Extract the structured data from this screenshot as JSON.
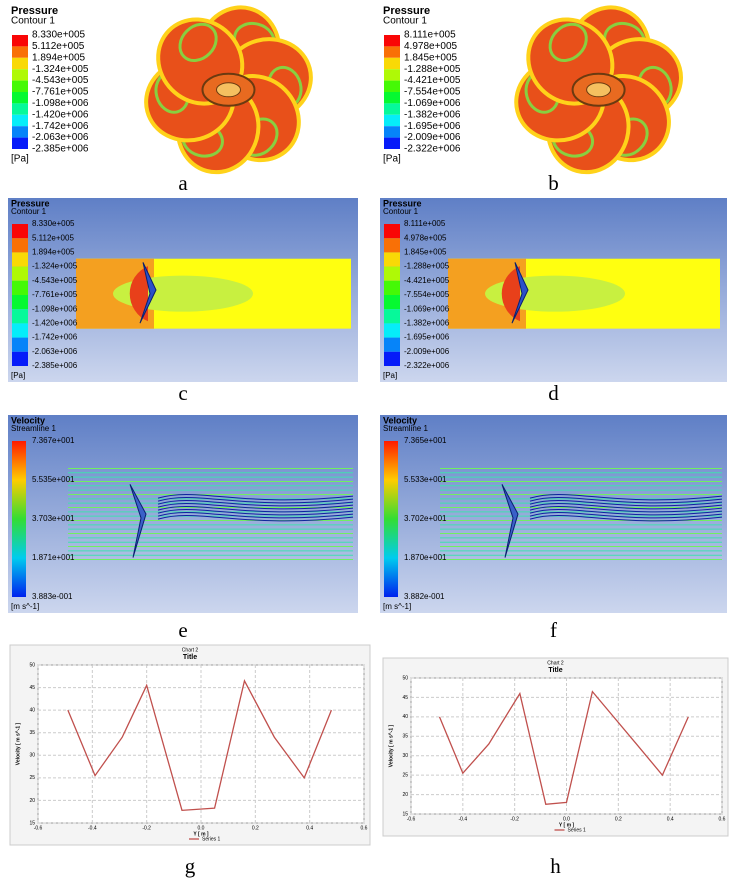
{
  "panels": [
    {
      "label": "a",
      "variable": "Pressure",
      "subtitle": "Contour 1",
      "legend": [
        "8.330e+005",
        "5.112e+005",
        "1.894e+005",
        "-1.324e+005",
        "-4.543e+005",
        "-7.761e+005",
        "-1.098e+006",
        "-1.420e+006",
        "-1.742e+006",
        "-2.063e+006",
        "-2.385e+006"
      ],
      "unit": "[Pa]"
    },
    {
      "label": "b",
      "variable": "Pressure",
      "subtitle": "Contour 1",
      "legend": [
        "8.111e+005",
        "4.978e+005",
        "1.845e+005",
        "-1.288e+005",
        "-4.421e+005",
        "-7.554e+005",
        "-1.069e+006",
        "-1.382e+006",
        "-1.695e+006",
        "-2.009e+006",
        "-2.322e+006"
      ],
      "unit": "[Pa]"
    },
    {
      "label": "c",
      "variable": "Pressure",
      "subtitle": "Contour 1",
      "legend": [
        "8.330e+005",
        "5.112e+005",
        "1.894e+005",
        "-1.324e+005",
        "-4.543e+005",
        "-7.761e+005",
        "-1.098e+006",
        "-1.420e+006",
        "-1.742e+006",
        "-2.063e+006",
        "-2.385e+006"
      ],
      "unit": "[Pa]"
    },
    {
      "label": "d",
      "variable": "Pressure",
      "subtitle": "Contour 1",
      "legend": [
        "8.111e+005",
        "4.978e+005",
        "1.845e+005",
        "-1.288e+005",
        "-4.421e+005",
        "-7.554e+005",
        "-1.069e+006",
        "-1.382e+006",
        "-1.695e+006",
        "-2.009e+006",
        "-2.322e+006"
      ],
      "unit": "[Pa]"
    },
    {
      "label": "e",
      "variable": "Velocity",
      "subtitle": "Streamline 1",
      "legend": [
        "7.367e+001",
        "5.535e+001",
        "3.703e+001",
        "1.871e+001",
        "3.883e-001"
      ],
      "unit": "[m s^-1]"
    },
    {
      "label": "f",
      "variable": "Velocity",
      "subtitle": "Streamline 1",
      "legend": [
        "7.365e+001",
        "5.533e+001",
        "3.702e+001",
        "1.870e+001",
        "3.882e-001"
      ],
      "unit": "[m s^-1]"
    }
  ],
  "chart_data": [
    {
      "type": "line",
      "panel_label": "g",
      "chart_name": "Chart 2",
      "title": "Title",
      "x_label": "Y [ m ]",
      "y_label": "Velocity [ m s^-1 ]",
      "x": [
        -0.49,
        -0.39,
        -0.29,
        -0.2,
        -0.07,
        0.05,
        0.16,
        0.27,
        0.38,
        0.48
      ],
      "series": [
        {
          "name": "Series 1",
          "color": "#c0504d",
          "values": [
            40,
            25.5,
            34,
            45.5,
            17.8,
            18.3,
            46.5,
            34,
            25,
            40
          ]
        }
      ],
      "xlim": [
        -0.6,
        0.6
      ],
      "xticks": [
        -0.6,
        -0.4,
        -0.2,
        {
          "value": 0,
          "label": "0.0"
        },
        0.2,
        0.4,
        0.6
      ],
      "ylim": [
        15,
        50
      ],
      "yticks": [
        15,
        20,
        25,
        30,
        35,
        40,
        45,
        50
      ],
      "grid": true
    },
    {
      "type": "line",
      "panel_label": "h",
      "chart_name": "Chart 2",
      "title": "Title",
      "x_label": "Y [ m ]",
      "y_label": "Velocity [ m s^-1 ]",
      "x": [
        -0.49,
        -0.4,
        -0.3,
        -0.18,
        -0.08,
        0.0,
        0.1,
        0.27,
        0.37,
        0.47
      ],
      "series": [
        {
          "name": "Series 1",
          "color": "#c0504d",
          "values": [
            40,
            25.5,
            33,
            46,
            17.5,
            18,
            46.5,
            33,
            25,
            40
          ]
        }
      ],
      "xlim": [
        -0.6,
        0.6
      ],
      "xticks": [
        -0.6,
        -0.4,
        -0.2,
        {
          "value": 0,
          "label": "0.0"
        },
        0.2,
        0.4,
        0.6
      ],
      "ylim": [
        15,
        50
      ],
      "yticks": [
        15,
        20,
        25,
        30,
        35,
        40,
        45,
        50
      ],
      "grid": true
    }
  ]
}
